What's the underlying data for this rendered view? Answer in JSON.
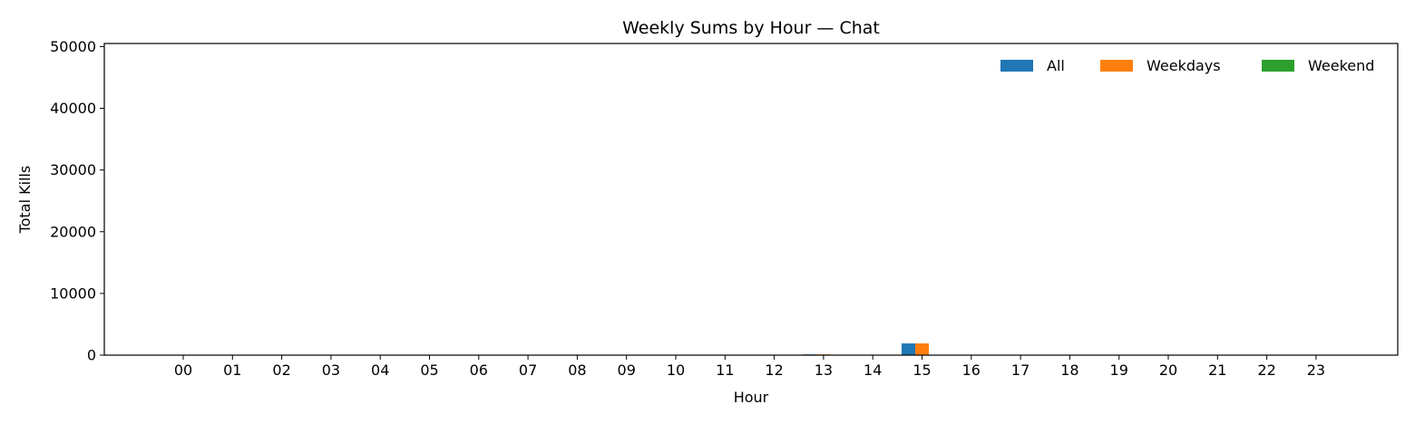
{
  "chart_data": {
    "type": "bar",
    "title": "Weekly Sums by Hour — Chat",
    "xlabel": "Hour",
    "ylabel": "Total Kills",
    "categories": [
      "00",
      "01",
      "02",
      "03",
      "04",
      "05",
      "06",
      "07",
      "08",
      "09",
      "10",
      "11",
      "12",
      "13",
      "14",
      "15",
      "16",
      "17",
      "18",
      "19",
      "20",
      "21",
      "22",
      "23"
    ],
    "series": [
      {
        "name": "All",
        "color": "#1f77b4",
        "values": [
          0,
          0,
          0,
          0,
          0,
          0,
          0,
          0,
          0,
          0,
          0,
          0,
          0,
          120,
          0,
          1900,
          0,
          0,
          0,
          0,
          0,
          0,
          0,
          0
        ]
      },
      {
        "name": "Weekdays",
        "color": "#ff7f0e",
        "values": [
          0,
          0,
          0,
          0,
          0,
          0,
          0,
          0,
          0,
          0,
          0,
          0,
          0,
          120,
          0,
          1900,
          0,
          0,
          0,
          0,
          0,
          0,
          0,
          0
        ]
      },
      {
        "name": "Weekend",
        "color": "#2ca02c",
        "values": [
          0,
          0,
          0,
          0,
          0,
          0,
          0,
          0,
          0,
          0,
          0,
          0,
          0,
          0,
          0,
          0,
          0,
          0,
          0,
          0,
          0,
          0,
          0,
          0
        ]
      }
    ],
    "ylim": [
      0,
      50500
    ],
    "yticks": [
      0,
      10000,
      20000,
      30000,
      40000,
      50000
    ],
    "grid": false,
    "legend": "upper-right"
  }
}
